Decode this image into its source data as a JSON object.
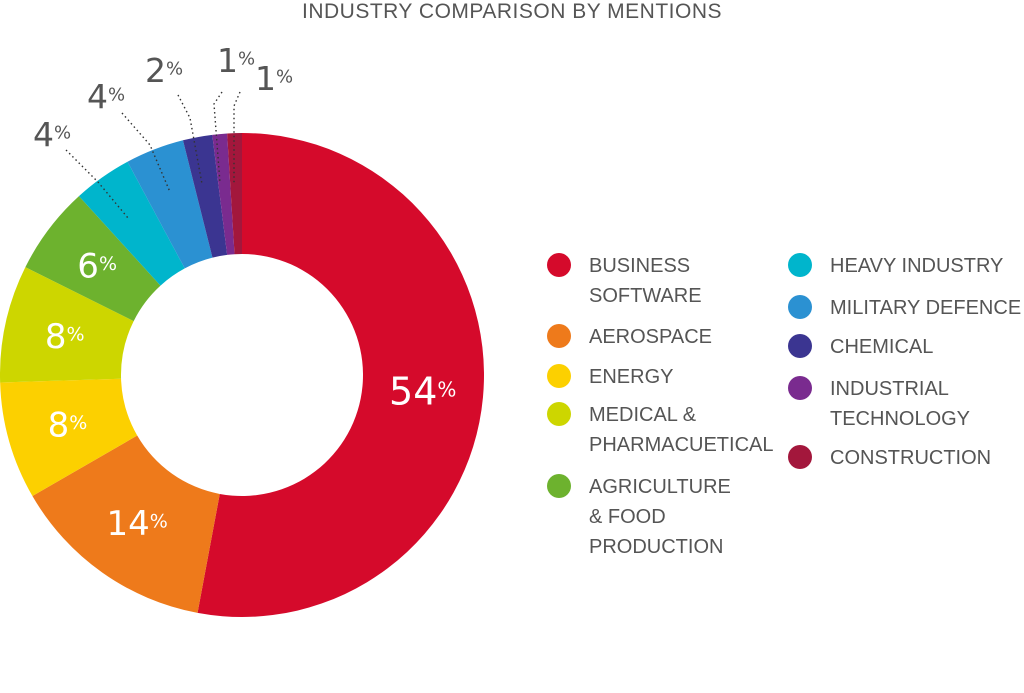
{
  "chart_data": {
    "type": "pie",
    "variant": "donut",
    "title": "INDUSTRY COMPARISON BY MENTIONS",
    "start_angle_deg": 0,
    "direction": "clockwise",
    "legend_placement": "right",
    "slices": [
      {
        "name": "BUSINESS SOFTWARE",
        "legend_lines": [
          "BUSINESS",
          "SOFTWARE"
        ],
        "value": 54,
        "label": "54%",
        "color": "#D50A2B",
        "label_position": "inside"
      },
      {
        "name": "AEROSPACE",
        "legend_lines": [
          "AEROSPACE"
        ],
        "value": 14,
        "label": "14%",
        "color": "#EE7A1B",
        "label_position": "inside"
      },
      {
        "name": "ENERGY",
        "legend_lines": [
          "ENERGY"
        ],
        "value": 8,
        "label": "8%",
        "color": "#FCD000",
        "label_position": "inside"
      },
      {
        "name": "MEDICAL & PHARMACUETICAL",
        "legend_lines": [
          "MEDICAL &",
          "PHARMACUETICAL"
        ],
        "value": 8,
        "label": "8%",
        "color": "#CDD600",
        "label_position": "inside"
      },
      {
        "name": "AGRICULTURE & FOOD PRODUCTION",
        "legend_lines": [
          "AGRICULTURE",
          "& FOOD",
          "PRODUCTION"
        ],
        "value": 6,
        "label": "6%",
        "color": "#6DB22E",
        "label_position": "inside"
      },
      {
        "name": "HEAVY INDUSTRY",
        "legend_lines": [
          "HEAVY INDUSTRY"
        ],
        "value": 4,
        "label": "4%",
        "color": "#00B5CC",
        "label_position": "outside"
      },
      {
        "name": "MILITARY DEFENCE",
        "legend_lines": [
          "MILITARY DEFENCE"
        ],
        "value": 4,
        "label": "4%",
        "color": "#2B91D2",
        "label_position": "outside"
      },
      {
        "name": "CHEMICAL",
        "legend_lines": [
          "CHEMICAL"
        ],
        "value": 2,
        "label": "2%",
        "color": "#3B3591",
        "label_position": "outside"
      },
      {
        "name": "INDUSTRIAL TECHNOLOGY",
        "legend_lines": [
          "INDUSTRIAL",
          "TECHNOLOGY"
        ],
        "value": 1,
        "label": "1%",
        "color": "#7A2B8F",
        "label_position": "outside"
      },
      {
        "name": "CONSTRUCTION",
        "legend_lines": [
          "CONSTRUCTION"
        ],
        "value": 1,
        "label": "1%",
        "color": "#A3173C",
        "label_position": "outside"
      }
    ]
  }
}
